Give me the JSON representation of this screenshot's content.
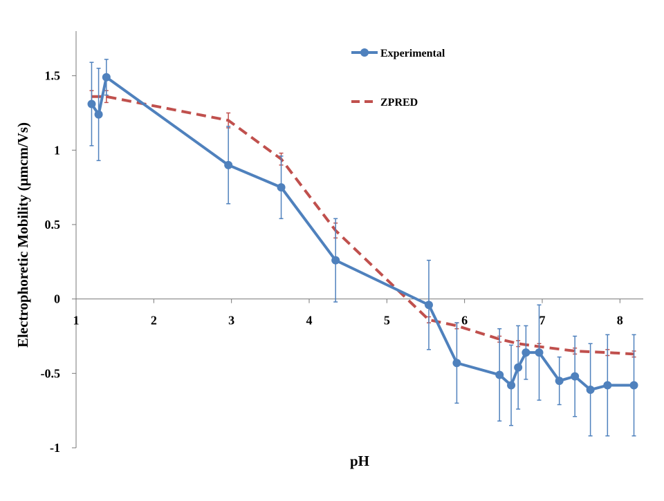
{
  "chart_data": {
    "type": "line",
    "xlabel": "pH",
    "ylabel": "Electrophoretic Mobility (μmcm/Vs)",
    "xlim": [
      1,
      8.3
    ],
    "ylim": [
      -1,
      1.8
    ],
    "x_ticks": [
      "1",
      "2",
      "3",
      "4",
      "5",
      "6",
      "7",
      "8"
    ],
    "y_ticks": [
      "-1",
      "-0.5",
      "0",
      "0.5",
      "1",
      "1.5"
    ],
    "grid": false,
    "legend_position": "top-right",
    "series": [
      {
        "name": "Experimental",
        "color": "#4f81bd",
        "style": "solid-with-markers",
        "x": [
          1.2,
          1.29,
          1.39,
          2.96,
          3.64,
          4.34,
          5.54,
          5.9,
          6.45,
          6.6,
          6.69,
          6.79,
          6.96,
          7.22,
          7.42,
          7.62,
          7.84,
          8.18
        ],
        "y": [
          1.31,
          1.24,
          1.49,
          0.9,
          0.75,
          0.26,
          -0.04,
          -0.43,
          -0.51,
          -0.58,
          -0.46,
          -0.36,
          -0.36,
          -0.55,
          -0.52,
          -0.61,
          -0.58,
          -0.58
        ],
        "error": [
          0.28,
          0.31,
          0.12,
          0.26,
          0.21,
          0.28,
          0.3,
          0.27,
          0.31,
          0.27,
          0.28,
          0.18,
          0.32,
          0.16,
          0.27,
          0.31,
          0.34,
          0.34
        ]
      },
      {
        "name": "ZPRED",
        "color": "#c0504d",
        "style": "dashed",
        "x": [
          1.2,
          1.39,
          2.96,
          3.64,
          4.34,
          5.54,
          5.9,
          6.45,
          6.69,
          6.96,
          7.42,
          7.84,
          8.18
        ],
        "y": [
          1.36,
          1.36,
          1.2,
          0.94,
          0.46,
          -0.14,
          -0.18,
          -0.27,
          -0.3,
          -0.32,
          -0.35,
          -0.36,
          -0.37
        ],
        "error": [
          0.04,
          0.04,
          0.05,
          0.04,
          0.05,
          0.02,
          0.02,
          0.02,
          0.02,
          0.02,
          0.02,
          0.02,
          0.02
        ]
      }
    ]
  }
}
